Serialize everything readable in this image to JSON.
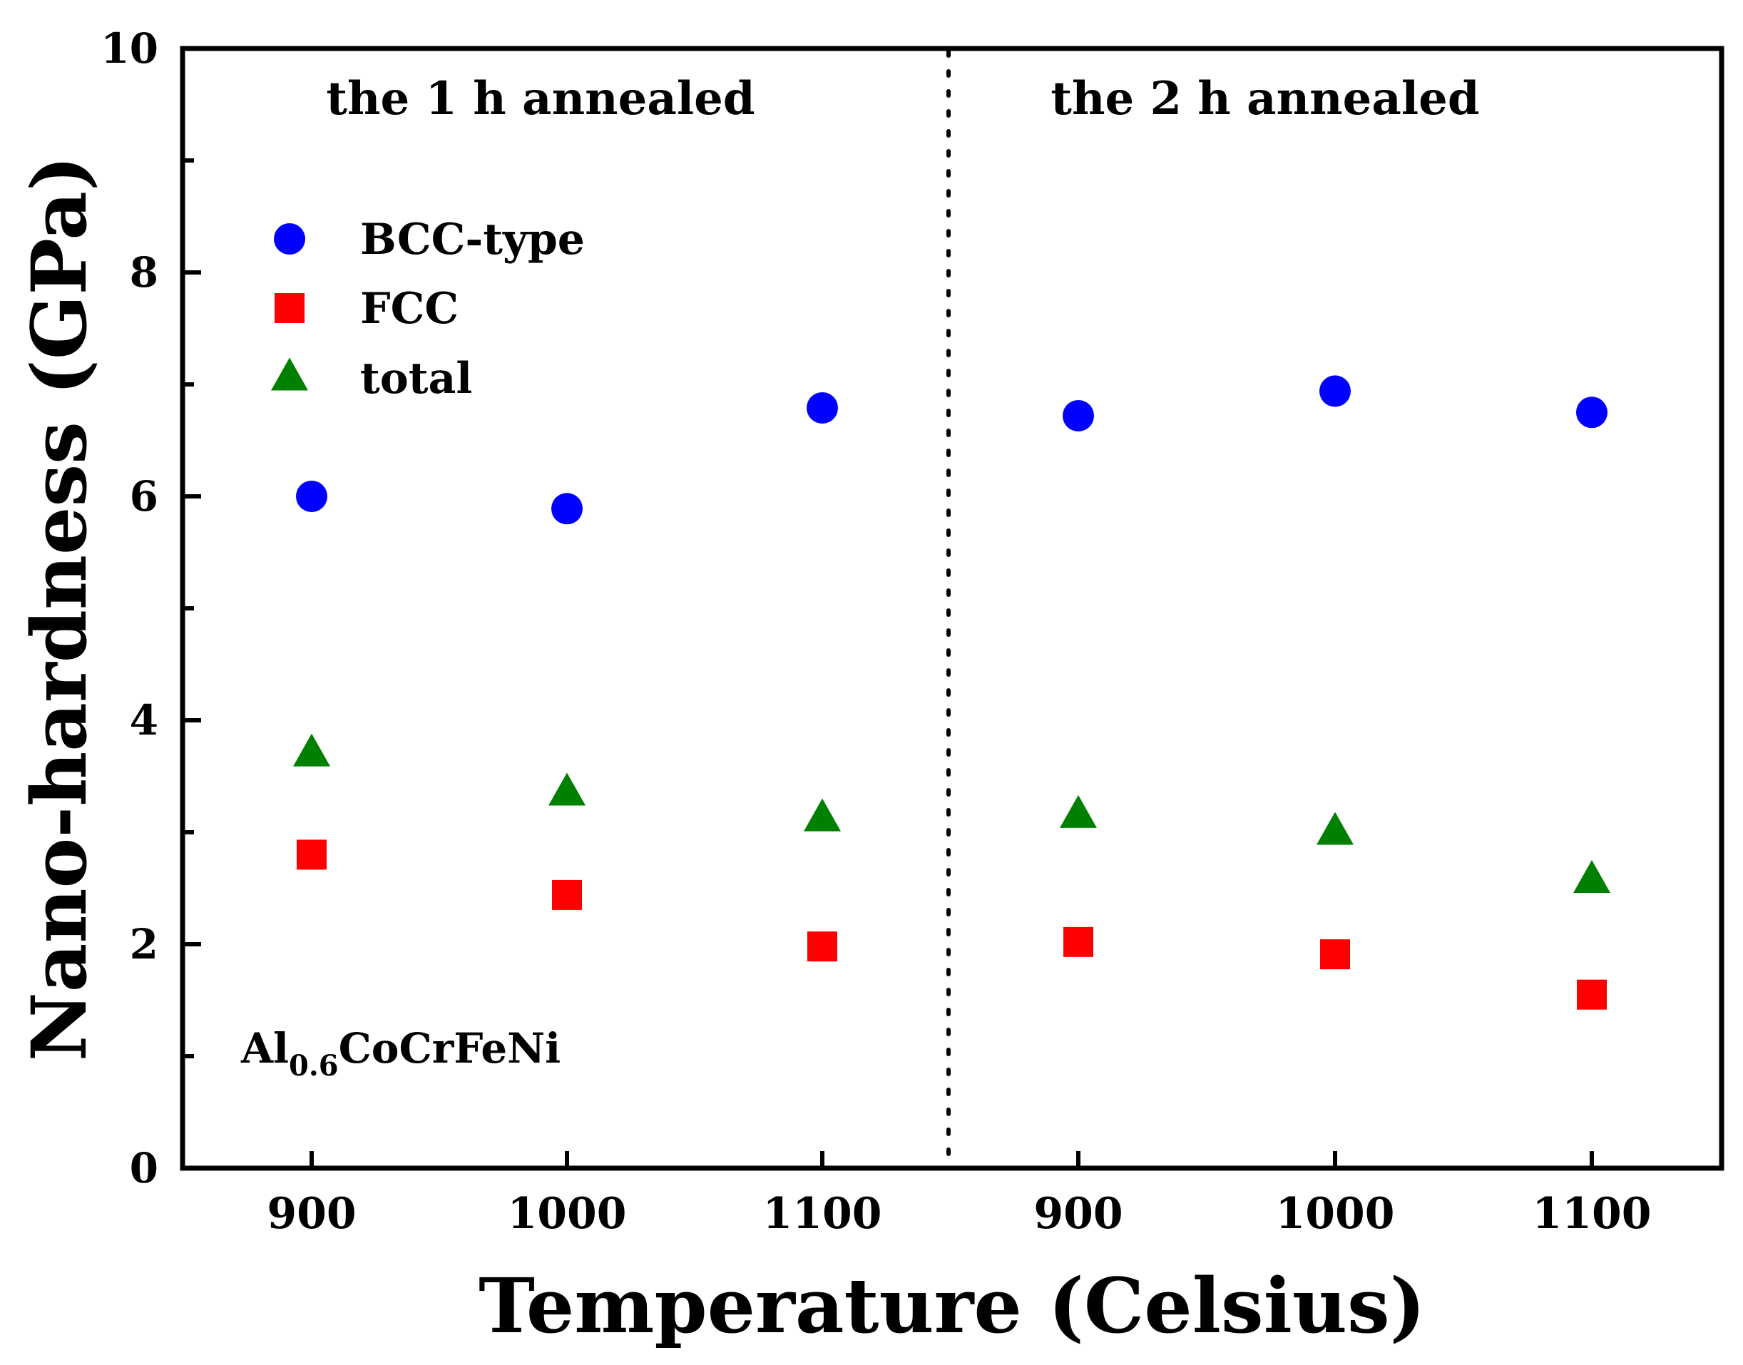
{
  "chart_data": {
    "type": "scatter",
    "title": "",
    "xlabel": "Temperature (Celsius)",
    "ylabel": "Nano-hardness (GPa)",
    "ylim": [
      0,
      10
    ],
    "yticks": [
      "0",
      "2",
      "4",
      "6",
      "8",
      "10"
    ],
    "categories": [
      "900",
      "1000",
      "1100",
      "900",
      "1000",
      "1100"
    ],
    "group_labels": [
      "the 1 h annealed",
      "the 2 h annealed"
    ],
    "annotation": {
      "main": "Al",
      "subscript": "0.6",
      "rest": "CoCrFeNi"
    },
    "legend_position": "upper-left",
    "series": [
      {
        "name": "BCC-type",
        "marker": "circle",
        "color": "#0000ff",
        "values": [
          6.0,
          5.89,
          6.79,
          6.72,
          6.94,
          6.75
        ]
      },
      {
        "name": "FCC",
        "marker": "square",
        "color": "#ff0000",
        "values": [
          2.8,
          2.44,
          1.98,
          2.02,
          1.91,
          1.55
        ]
      },
      {
        "name": "total",
        "marker": "triangle",
        "color": "#008000",
        "values": [
          3.7,
          3.35,
          3.12,
          3.15,
          3.0,
          2.57
        ]
      }
    ]
  }
}
